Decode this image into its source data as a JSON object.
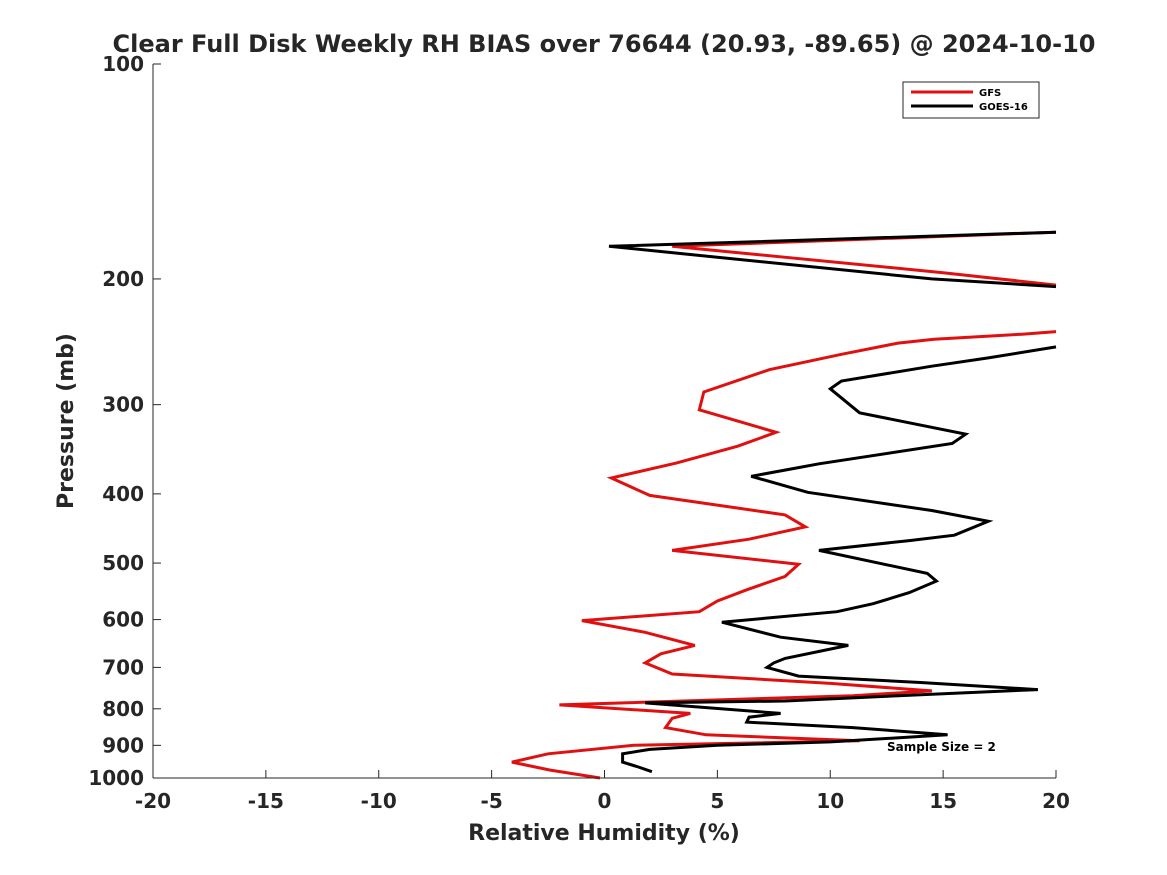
{
  "chart_data": {
    "type": "line",
    "title": "Clear Full Disk Weekly RH BIAS over 76644 (20.93, -89.65) @ 2024-10-10",
    "xlabel": "Relative Humidity (%)",
    "ylabel": "Pressure (mb)",
    "xlim": [
      -20,
      20
    ],
    "ylim": [
      100,
      1000
    ],
    "yscale": "log",
    "y_reversed": true,
    "grid": false,
    "legend_position": "top-right",
    "x_ticks": [
      -20,
      -15,
      -10,
      -5,
      0,
      5,
      10,
      15,
      20
    ],
    "x_tick_labels": [
      "-20",
      "-15",
      "-10",
      "-5",
      "0",
      "5",
      "10",
      "15",
      "20"
    ],
    "y_ticks": [
      100,
      200,
      300,
      400,
      500,
      600,
      700,
      800,
      900,
      1000
    ],
    "y_tick_labels": [
      "100",
      "200",
      "300",
      "400",
      "500",
      "600",
      "700",
      "800",
      "900",
      "1000"
    ],
    "annotation": "Sample Size = 2",
    "series": [
      {
        "name": "GFS",
        "color": "#e01010",
        "points": [
          [
            -0.2,
            1000
          ],
          [
            -2.4,
            975
          ],
          [
            -4.1,
            950
          ],
          [
            -2.5,
            925
          ],
          [
            1.3,
            900
          ],
          [
            11.3,
            887
          ],
          [
            4.5,
            870
          ],
          [
            2.7,
            850
          ],
          [
            3.0,
            825
          ],
          [
            3.8,
            812
          ],
          [
            -2.0,
            790
          ],
          [
            11.0,
            767
          ],
          [
            14.5,
            755
          ],
          [
            10.0,
            737
          ],
          [
            3.0,
            715
          ],
          [
            1.8,
            690
          ],
          [
            2.5,
            670
          ],
          [
            4.0,
            652
          ],
          [
            1.8,
            625
          ],
          [
            -1.0,
            602
          ],
          [
            4.2,
            585
          ],
          [
            5.0,
            565
          ],
          [
            6.3,
            545
          ],
          [
            8.0,
            522
          ],
          [
            8.6,
            502
          ],
          [
            3.0,
            480
          ],
          [
            6.4,
            463
          ],
          [
            8.9,
            445
          ],
          [
            8.0,
            428
          ],
          [
            2.0,
            402
          ],
          [
            0.3,
            380
          ],
          [
            3.2,
            362
          ],
          [
            5.9,
            343
          ],
          [
            7.6,
            328
          ],
          [
            4.2,
            305
          ],
          [
            4.4,
            288
          ],
          [
            7.3,
            268
          ],
          [
            10.5,
            255
          ],
          [
            13.0,
            246
          ],
          [
            14.6,
            243
          ],
          [
            18.5,
            239
          ],
          [
            20.0,
            237
          ]
        ]
      },
      {
        "name": "GOES-16",
        "color": "#000000",
        "points": [
          [
            2.1,
            980
          ],
          [
            1.5,
            965
          ],
          [
            0.8,
            950
          ],
          [
            0.8,
            925
          ],
          [
            2.0,
            912
          ],
          [
            5.0,
            900
          ],
          [
            10.0,
            890
          ],
          [
            15.2,
            870
          ],
          [
            11.0,
            850
          ],
          [
            6.3,
            835
          ],
          [
            6.4,
            822
          ],
          [
            7.8,
            812
          ],
          [
            1.8,
            785
          ],
          [
            8.0,
            780
          ],
          [
            13.0,
            767
          ],
          [
            19.2,
            752
          ],
          [
            14.0,
            735
          ],
          [
            8.6,
            720
          ],
          [
            7.2,
            700
          ],
          [
            7.5,
            690
          ],
          [
            8.0,
            680
          ],
          [
            10.8,
            652
          ],
          [
            7.8,
            635
          ],
          [
            5.2,
            605
          ],
          [
            10.3,
            585
          ],
          [
            11.9,
            570
          ],
          [
            13.5,
            550
          ],
          [
            14.7,
            530
          ],
          [
            14.3,
            517
          ],
          [
            9.5,
            480
          ],
          [
            13.5,
            465
          ],
          [
            15.5,
            457
          ],
          [
            17.0,
            437
          ],
          [
            14.5,
            422
          ],
          [
            9.0,
            398
          ],
          [
            6.5,
            378
          ],
          [
            8.5,
            368
          ],
          [
            9.5,
            363
          ],
          [
            15.4,
            340
          ],
          [
            16.0,
            330
          ],
          [
            11.3,
            308
          ],
          [
            10.0,
            285
          ],
          [
            10.5,
            278
          ],
          [
            14.5,
            265
          ],
          [
            17.0,
            258
          ],
          [
            20.0,
            249
          ]
        ]
      },
      {
        "name": "GFS",
        "color": "#e01010",
        "points": [
          [
            20.0,
            172
          ],
          [
            3.0,
            180
          ],
          [
            15.0,
            196
          ],
          [
            20.0,
            204
          ]
        ]
      },
      {
        "name": "GOES-16",
        "color": "#000000",
        "points": [
          [
            20.0,
            172
          ],
          [
            0.2,
            180
          ],
          [
            14.5,
            200
          ],
          [
            20.0,
            205
          ]
        ]
      }
    ]
  }
}
